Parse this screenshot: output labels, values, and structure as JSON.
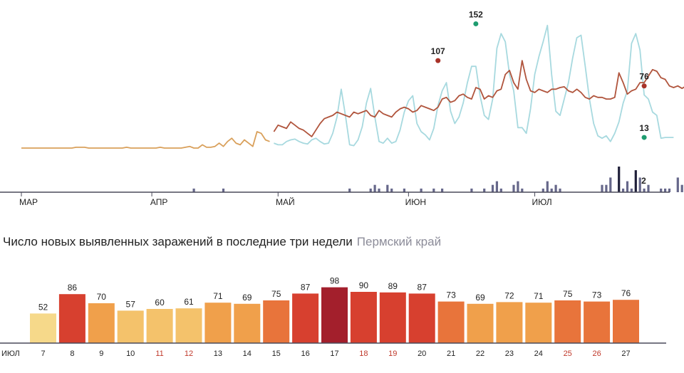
{
  "chart_data": [
    {
      "type": "line",
      "title": "",
      "x_range": [
        "2020-03-01",
        "2020-07-28"
      ],
      "month_labels": [
        "МАР",
        "АПР",
        "МАЙ",
        "ИЮН",
        "ИЮЛ"
      ],
      "month_starts": [
        "2020-03-01",
        "2020-04-01",
        "2020-05-01",
        "2020-06-01",
        "2020-07-01"
      ],
      "ylim": [
        0,
        155
      ],
      "grid": false,
      "series": [
        {
          "color": "#d9a05b",
          "style": "line",
          "x_start": "2020-03-01",
          "x_end": "2020-04-30",
          "values": [
            0,
            0,
            0,
            0,
            0,
            0,
            0,
            0,
            0,
            0,
            0,
            0,
            0,
            1,
            1,
            1,
            0,
            0,
            0,
            0,
            0,
            0,
            0,
            0,
            0,
            1,
            0,
            0,
            0,
            0,
            0,
            0,
            0,
            1,
            0,
            0,
            0,
            0,
            0,
            1,
            2,
            0,
            0,
            4,
            1,
            1,
            2,
            6,
            2,
            8,
            12,
            6,
            4,
            10,
            6,
            2,
            20,
            18,
            10,
            8
          ]
        },
        {
          "color": "#a7d9df",
          "style": "line",
          "x_start": "2020-04-30",
          "x_end": "2020-07-28",
          "values": [
            6,
            4,
            4,
            8,
            10,
            11,
            8,
            6,
            5,
            10,
            12,
            8,
            5,
            6,
            18,
            38,
            72,
            40,
            4,
            3,
            10,
            26,
            55,
            73,
            38,
            8,
            6,
            12,
            6,
            8,
            22,
            44,
            58,
            64,
            30,
            20,
            16,
            10,
            24,
            52,
            70,
            80,
            45,
            30,
            38,
            55,
            80,
            100,
            100,
            64,
            40,
            35,
            60,
            122,
            140,
            130,
            90,
            70,
            25,
            25,
            18,
            48,
            90,
            112,
            130,
            150,
            90,
            45,
            40,
            60,
            80,
            110,
            135,
            138,
            100,
            60,
            30,
            15,
            12,
            15,
            8,
            18,
            32,
            55,
            70,
            128,
            140,
            120,
            65,
            60,
            44,
            40,
            12,
            13,
            13,
            13
          ]
        },
        {
          "color": "#f0f1f6",
          "style": "line",
          "x_start": "2020-04-30",
          "x_end": "2020-07-28",
          "values": []
        },
        {
          "color": "#b0543c",
          "style": "line",
          "x_start": "2020-04-30",
          "x_end": "2020-07-28",
          "values": [
            20,
            28,
            26,
            24,
            32,
            28,
            24,
            22,
            18,
            14,
            22,
            30,
            36,
            38,
            40,
            44,
            42,
            40,
            38,
            44,
            42,
            44,
            46,
            40,
            38,
            46,
            42,
            40,
            38,
            44,
            48,
            50,
            48,
            44,
            46,
            52,
            50,
            48,
            46,
            50,
            60,
            62,
            56,
            58,
            64,
            66,
            62,
            60,
            74,
            72,
            60,
            64,
            62,
            70,
            72,
            90,
            95,
            80,
            72,
            107,
            84,
            70,
            68,
            72,
            70,
            68,
            72,
            72,
            74,
            75,
            70,
            68,
            72,
            68,
            62,
            60,
            64,
            62,
            62,
            60,
            60,
            62,
            92,
            80,
            66,
            70,
            72,
            80,
            80,
            88,
            96,
            94,
            86,
            84,
            76,
            74,
            76,
            73,
            76,
            78,
            76
          ]
        }
      ],
      "annotations": [
        {
          "label": "107",
          "x": "2020-06-08",
          "y": 107,
          "color": "#a83228"
        },
        {
          "label": "152",
          "x": "2020-06-17",
          "y": 152,
          "color": "#1e9c6f"
        },
        {
          "label": "76",
          "x": "2020-07-27",
          "y": 76,
          "color": "#a83228"
        },
        {
          "label": "13",
          "x": "2020-07-27",
          "y": 13,
          "color": "#1e9c6f"
        },
        {
          "label": "2",
          "x": "2020-07-27",
          "y": 2,
          "color": "#8c8c99"
        }
      ],
      "deaths_bars": {
        "color": "#66678a",
        "dark_color": "#20203a",
        "ylim": [
          0,
          7
        ],
        "values": [
          0,
          0,
          0,
          0,
          0,
          0,
          0,
          0,
          0,
          0,
          0,
          0,
          0,
          0,
          0,
          0,
          0,
          0,
          0,
          0,
          0,
          0,
          0,
          0,
          0,
          0,
          0,
          0,
          0,
          0,
          0,
          0,
          0,
          0,
          0,
          0,
          0,
          0,
          0,
          0,
          0,
          1,
          0,
          0,
          0,
          0,
          0,
          0,
          1,
          0,
          0,
          0,
          0,
          0,
          0,
          0,
          0,
          0,
          0,
          0,
          0,
          0,
          0,
          0,
          0,
          0,
          0,
          0,
          0,
          0,
          0,
          0,
          0,
          0,
          0,
          0,
          0,
          0,
          1,
          0,
          0,
          0,
          0,
          1,
          2,
          1,
          0,
          2,
          1,
          0,
          0,
          1,
          0,
          0,
          0,
          1,
          0,
          0,
          1,
          0,
          1,
          0,
          0,
          0,
          0,
          0,
          0,
          1,
          0,
          0,
          1,
          0,
          2,
          3,
          1,
          0,
          0,
          2,
          3,
          1,
          0,
          0,
          0,
          0,
          1,
          3,
          1,
          2,
          1,
          0,
          0,
          0,
          0,
          0,
          0,
          0,
          0,
          0,
          2,
          2,
          4,
          0,
          7,
          1,
          3,
          1,
          6,
          4,
          1,
          2,
          0,
          0,
          1,
          1,
          1,
          0,
          4,
          2,
          0,
          0,
          1,
          0,
          0,
          0,
          0,
          0,
          0,
          0,
          0,
          2,
          0,
          1,
          0,
          1,
          0,
          0,
          2,
          1,
          2,
          0,
          0,
          0,
          0,
          0,
          0,
          0,
          0,
          1,
          0,
          1,
          0,
          0,
          1,
          0,
          3,
          3,
          3,
          1,
          4,
          1,
          7,
          6,
          2,
          4,
          2
        ]
      }
    },
    {
      "type": "bar",
      "title": "Число новых выявленных заражений в последние три недели",
      "subtitle": "Пермский край",
      "month_label": "ИЮЛ",
      "categories": [
        "7",
        "8",
        "9",
        "10",
        "11",
        "12",
        "13",
        "14",
        "15",
        "16",
        "17",
        "18",
        "19",
        "20",
        "21",
        "22",
        "23",
        "24",
        "25",
        "26",
        "27"
      ],
      "values": [
        52,
        86,
        70,
        57,
        60,
        61,
        71,
        69,
        75,
        87,
        98,
        90,
        89,
        87,
        73,
        69,
        72,
        71,
        75,
        73,
        76
      ],
      "weekend": [
        false,
        false,
        false,
        false,
        true,
        true,
        false,
        false,
        false,
        false,
        false,
        true,
        true,
        false,
        false,
        false,
        false,
        false,
        true,
        true,
        false
      ],
      "ylim": [
        0,
        100
      ],
      "weekend_color": "#c0392b",
      "palette": [
        "#f6d98a",
        "#f4c26b",
        "#f0a04b",
        "#e8743b",
        "#d7402f",
        "#a31f2c"
      ]
    }
  ]
}
